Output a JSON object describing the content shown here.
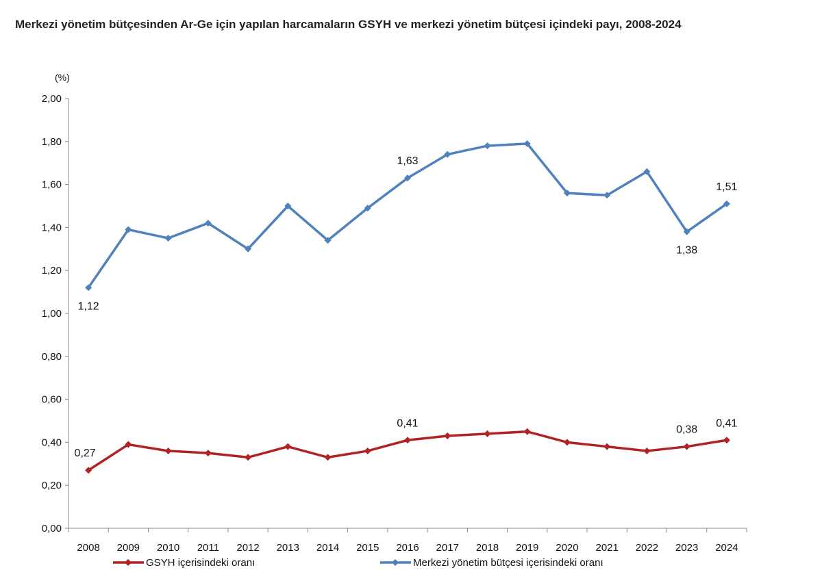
{
  "chart_data": {
    "type": "line",
    "title": "Merkezi yönetim bütçesinden Ar-Ge için yapılan harcamaların GSYH ve merkezi yönetim bütçesi içindeki payı, 2008-2024",
    "ylabel": "(%)",
    "xlabel": "",
    "ylim": [
      0,
      2
    ],
    "yticks": [
      "0,00",
      "0,20",
      "0,40",
      "0,60",
      "0,80",
      "1,00",
      "1,20",
      "1,40",
      "1,60",
      "1,80",
      "2,00"
    ],
    "categories": [
      "2008",
      "2009",
      "2010",
      "2011",
      "2012",
      "2013",
      "2014",
      "2015",
      "2016",
      "2017",
      "2018",
      "2019",
      "2020",
      "2021",
      "2022",
      "2023",
      "2024"
    ],
    "grid": false,
    "legend": "bottom",
    "series": [
      {
        "name": "GSYH içerisindeki oranı",
        "color": "#b22222",
        "values": [
          0.27,
          0.39,
          0.36,
          0.35,
          0.33,
          0.38,
          0.33,
          0.36,
          0.41,
          0.43,
          0.44,
          0.45,
          0.4,
          0.38,
          0.36,
          0.38,
          0.41
        ],
        "labels": {
          "2008": "0,27",
          "2016": "0,41",
          "2023": "0,38",
          "2024": "0,41"
        }
      },
      {
        "name": "Merkezi yönetim bütçesi içerisindeki oranı",
        "color": "#4f81bd",
        "values": [
          1.12,
          1.39,
          1.35,
          1.42,
          1.3,
          1.5,
          1.34,
          1.49,
          1.63,
          1.74,
          1.78,
          1.79,
          1.56,
          1.55,
          1.66,
          1.38,
          1.51
        ],
        "labels": {
          "2008": "1,12",
          "2016": "1,63",
          "2023": "1,38",
          "2024": "1,51"
        }
      }
    ]
  }
}
